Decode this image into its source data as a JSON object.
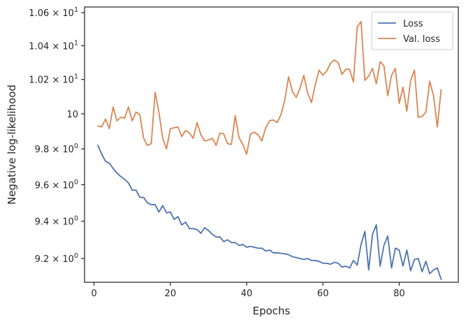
{
  "chart_data": {
    "type": "line",
    "title": "",
    "xlabel": "Epochs",
    "ylabel": "Negative log-likelihood",
    "xlim": [
      -2.5,
      95.5
    ],
    "ylim": [
      9.075,
      10.635
    ],
    "y_scale": "log",
    "grid": false,
    "legend_position": "top-right",
    "x_ticks": [
      0,
      20,
      40,
      60,
      80
    ],
    "x_tick_labels": [
      "0",
      "20",
      "40",
      "60",
      "80"
    ],
    "y_ticks": [
      9.2,
      9.4,
      9.6,
      9.8,
      10.0,
      10.2,
      10.4,
      10.6
    ],
    "y_tick_labels": [
      {
        "mantissa": "9.2",
        "exp": "0"
      },
      {
        "mantissa": "9.4",
        "exp": "0"
      },
      {
        "mantissa": "9.6",
        "exp": "0"
      },
      {
        "mantissa": "9.8",
        "exp": "0"
      },
      {
        "mantissa": "10",
        "exp": ""
      },
      {
        "mantissa": "1.02",
        "exp": "1"
      },
      {
        "mantissa": "1.04",
        "exp": "1"
      },
      {
        "mantissa": "1.06",
        "exp": "1"
      }
    ],
    "series": [
      {
        "name": "Loss",
        "color": "#4c72b0",
        "x": [
          1,
          2,
          3,
          4,
          5,
          6,
          7,
          8,
          9,
          10,
          11,
          12,
          13,
          14,
          15,
          16,
          17,
          18,
          19,
          20,
          21,
          22,
          23,
          24,
          25,
          26,
          27,
          28,
          29,
          30,
          31,
          32,
          33,
          34,
          35,
          36,
          37,
          38,
          39,
          40,
          41,
          42,
          43,
          44,
          45,
          46,
          47,
          48,
          49,
          50,
          51,
          52,
          53,
          54,
          55,
          56,
          57,
          58,
          59,
          60,
          61,
          62,
          63,
          64,
          65,
          66,
          67,
          68,
          69,
          70,
          71,
          72,
          73,
          74,
          75,
          76,
          77,
          78,
          79,
          80,
          81,
          82,
          83,
          84,
          85,
          86,
          87,
          88,
          89,
          90,
          91
        ],
        "values": [
          9.82,
          9.77,
          9.73,
          9.72,
          9.69,
          9.665,
          9.645,
          9.63,
          9.61,
          9.57,
          9.57,
          9.53,
          9.53,
          9.5,
          9.49,
          9.49,
          9.45,
          9.485,
          9.445,
          9.45,
          9.41,
          9.425,
          9.38,
          9.395,
          9.36,
          9.36,
          9.355,
          9.335,
          9.365,
          9.35,
          9.33,
          9.315,
          9.315,
          9.29,
          9.3,
          9.285,
          9.285,
          9.27,
          9.275,
          9.26,
          9.265,
          9.26,
          9.255,
          9.255,
          9.24,
          9.245,
          9.23,
          9.23,
          9.228,
          9.225,
          9.22,
          9.21,
          9.205,
          9.2,
          9.195,
          9.2,
          9.19,
          9.19,
          9.185,
          9.175,
          9.175,
          9.17,
          9.18,
          9.175,
          9.155,
          9.16,
          9.15,
          9.19,
          9.165,
          9.275,
          9.345,
          9.14,
          9.33,
          9.38,
          9.16,
          9.27,
          9.32,
          9.15,
          9.255,
          9.245,
          9.16,
          9.245,
          9.135,
          9.195,
          9.2,
          9.13,
          9.185,
          9.12,
          9.14,
          9.15,
          9.09
        ]
      },
      {
        "name": "Val. loss",
        "color": "#dd8452",
        "x": [
          1,
          2,
          3,
          4,
          5,
          6,
          7,
          8,
          9,
          10,
          11,
          12,
          13,
          14,
          15,
          16,
          17,
          18,
          19,
          20,
          21,
          22,
          23,
          24,
          25,
          26,
          27,
          28,
          29,
          30,
          31,
          32,
          33,
          34,
          35,
          36,
          37,
          38,
          39,
          40,
          41,
          42,
          43,
          44,
          45,
          46,
          47,
          48,
          49,
          50,
          51,
          52,
          53,
          54,
          55,
          56,
          57,
          58,
          59,
          60,
          61,
          62,
          63,
          64,
          65,
          66,
          67,
          68,
          69,
          70,
          71,
          72,
          73,
          74,
          75,
          76,
          77,
          78,
          79,
          80,
          81,
          82,
          83,
          84,
          85,
          86,
          87,
          88,
          89,
          90,
          91
        ],
        "values": [
          9.93,
          9.925,
          9.97,
          9.915,
          10.04,
          9.96,
          9.98,
          9.975,
          10.04,
          9.96,
          10.01,
          9.995,
          9.86,
          9.82,
          9.83,
          10.125,
          10.01,
          9.86,
          9.8,
          9.915,
          9.92,
          9.925,
          9.87,
          9.905,
          9.89,
          9.86,
          9.95,
          9.88,
          9.845,
          9.85,
          9.86,
          9.82,
          9.89,
          9.885,
          9.83,
          9.825,
          9.99,
          9.865,
          9.825,
          9.77,
          9.885,
          9.895,
          9.88,
          9.845,
          9.92,
          9.96,
          9.965,
          9.95,
          9.995,
          10.08,
          10.215,
          10.13,
          10.095,
          10.15,
          10.225,
          10.12,
          10.065,
          10.17,
          10.255,
          10.225,
          10.25,
          10.295,
          10.315,
          10.3,
          10.23,
          10.26,
          10.26,
          10.185,
          10.515,
          10.545,
          10.195,
          10.22,
          10.265,
          10.175,
          10.305,
          10.28,
          10.105,
          10.225,
          10.265,
          10.06,
          10.155,
          10.015,
          10.195,
          10.255,
          9.98,
          9.985,
          10.01,
          10.19,
          10.105,
          9.925,
          10.14
        ]
      }
    ]
  }
}
